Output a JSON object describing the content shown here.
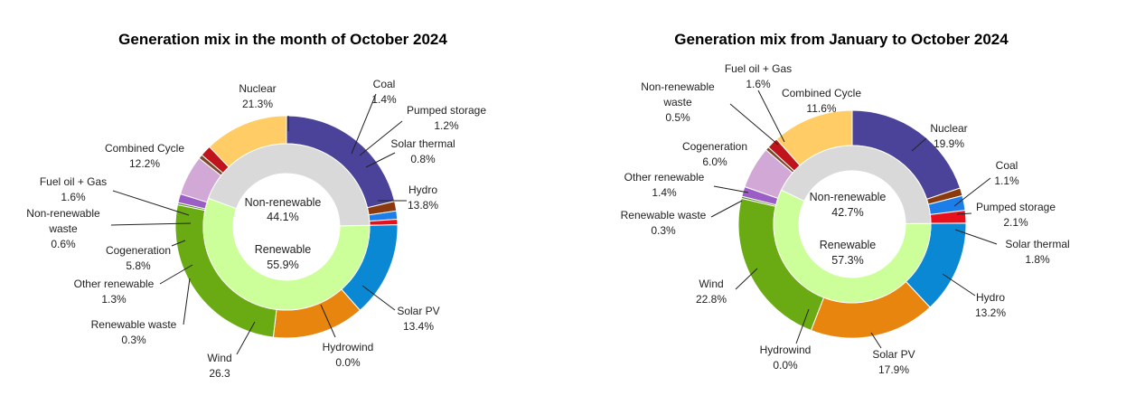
{
  "chart_data": [
    {
      "type": "pie",
      "variant": "nested-donut",
      "title": "Generation mix in the month of October 2024",
      "inner_ring": [
        {
          "name": "Non-renewable",
          "pct": "44.1%",
          "value": 44.1,
          "color": "#d9d9d9"
        },
        {
          "name": "Renewable",
          "pct": "55.9%",
          "value": 55.9,
          "color": "#ccff99"
        }
      ],
      "outer_ring": [
        {
          "name": "Nuclear",
          "pct": "21.3%",
          "value": 21.3,
          "color": "#4a4399"
        },
        {
          "name": "Coal",
          "pct": "1.4%",
          "value": 1.4,
          "color": "#8b3a0e"
        },
        {
          "name": "Pumped storage",
          "pct": "1.2%",
          "value": 1.2,
          "color": "#1c7ee8"
        },
        {
          "name": "Solar thermal",
          "pct": "0.8%",
          "value": 0.8,
          "color": "#e8101c"
        },
        {
          "name": "Hydro",
          "pct": "13.8%",
          "value": 13.8,
          "color": "#0b88d4"
        },
        {
          "name": "Solar PV",
          "pct": "13.4%",
          "value": 13.4,
          "color": "#e8850e"
        },
        {
          "name": "Hydrowind",
          "pct": "0.0%",
          "value": 0.0,
          "color": "#1a3f8a"
        },
        {
          "name": "Wind",
          "pct": "26.3",
          "value": 26.3,
          "color": "#6aab14"
        },
        {
          "name": "Renewable waste",
          "pct": "0.3%",
          "value": 0.3,
          "color": "#5a8a2a"
        },
        {
          "name": "Other renewable",
          "pct": "1.3%",
          "value": 1.3,
          "color": "#9a5ec6"
        },
        {
          "name": "Cogeneration",
          "pct": "5.8%",
          "value": 5.8,
          "color": "#d2a8d6"
        },
        {
          "name": "Non-renewable waste",
          "pct": "0.6%",
          "value": 0.6,
          "color": "#7a4a2a"
        },
        {
          "name": "Fuel oil + Gas",
          "pct": "1.6%",
          "value": 1.6,
          "color": "#c0141c"
        },
        {
          "name": "Combined Cycle",
          "pct": "12.2%",
          "value": 12.2,
          "color": "#ffcc66"
        }
      ]
    },
    {
      "type": "pie",
      "variant": "nested-donut",
      "title": "Generation mix from January to October 2024",
      "inner_ring": [
        {
          "name": "Non-renewable",
          "pct": "42.7%",
          "value": 42.7,
          "color": "#d9d9d9"
        },
        {
          "name": "Renewable",
          "pct": "57.3%",
          "value": 57.3,
          "color": "#ccff99"
        }
      ],
      "outer_ring": [
        {
          "name": "Nuclear",
          "pct": "19.9%",
          "value": 19.9,
          "color": "#4a4399"
        },
        {
          "name": "Coal",
          "pct": "1.1%",
          "value": 1.1,
          "color": "#8b3a0e"
        },
        {
          "name": "Pumped storage",
          "pct": "2.1%",
          "value": 2.1,
          "color": "#1c7ee8"
        },
        {
          "name": "Solar thermal",
          "pct": "1.8%",
          "value": 1.8,
          "color": "#e8101c"
        },
        {
          "name": "Hydro",
          "pct": "13.2%",
          "value": 13.2,
          "color": "#0b88d4"
        },
        {
          "name": "Solar PV",
          "pct": "17.9%",
          "value": 17.9,
          "color": "#e8850e"
        },
        {
          "name": "Hydrowind",
          "pct": "0.0%",
          "value": 0.0,
          "color": "#1a3f8a"
        },
        {
          "name": "Wind",
          "pct": "22.8%",
          "value": 22.8,
          "color": "#6aab14"
        },
        {
          "name": "Renewable waste",
          "pct": "0.3%",
          "value": 0.3,
          "color": "#5a8a2a"
        },
        {
          "name": "Other renewable",
          "pct": "1.4%",
          "value": 1.4,
          "color": "#9a5ec6"
        },
        {
          "name": "Cogeneration",
          "pct": "6.0%",
          "value": 6.0,
          "color": "#d2a8d6"
        },
        {
          "name": "Non-renewable waste",
          "pct": "0.5%",
          "value": 0.5,
          "color": "#7a4a2a"
        },
        {
          "name": "Fuel oil + Gas",
          "pct": "1.6%",
          "value": 1.6,
          "color": "#c0141c"
        },
        {
          "name": "Combined Cycle",
          "pct": "11.6%",
          "value": 11.6,
          "color": "#ffcc66"
        }
      ]
    }
  ]
}
